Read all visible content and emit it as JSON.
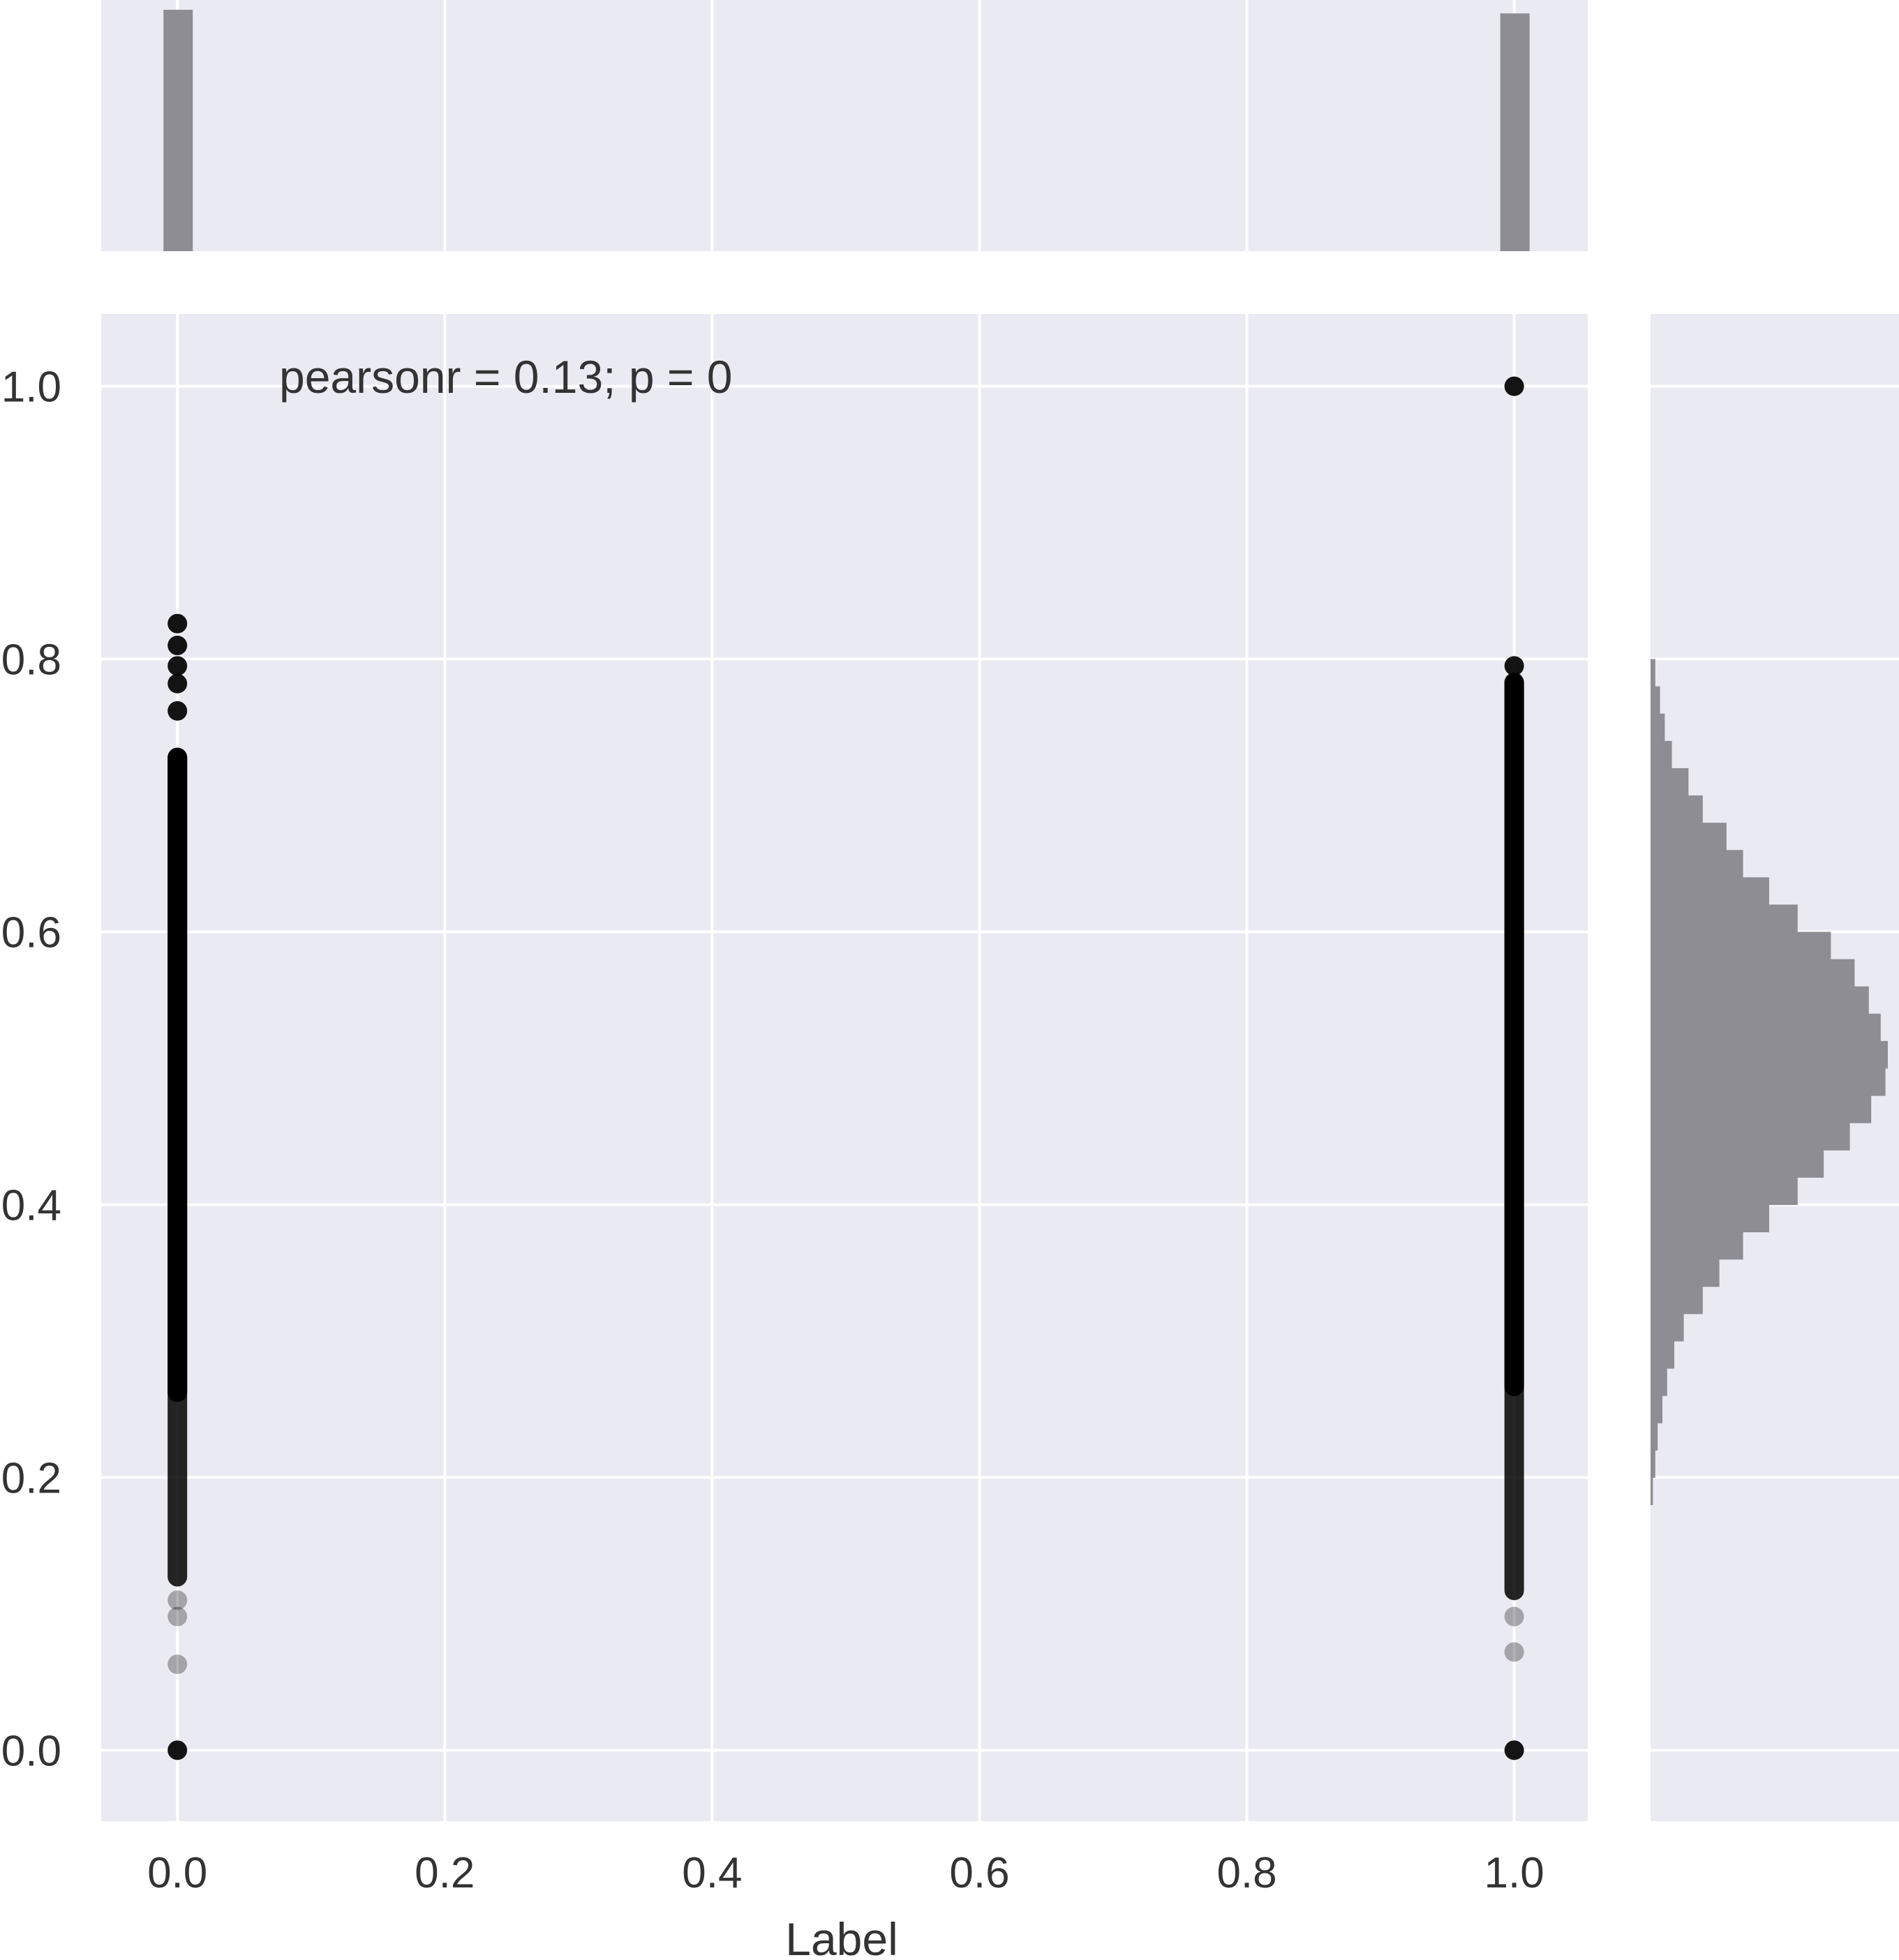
{
  "chart_data": {
    "type": "scatter",
    "title": "",
    "xlabel": "Label",
    "ylabel": "",
    "annotation": "pearsonr = 0.13; p = 0",
    "xlim": [
      -0.057,
      1.055
    ],
    "ylim": [
      -0.052,
      1.053
    ],
    "xticks": [
      0.0,
      0.2,
      0.4,
      0.6,
      0.8,
      1.0
    ],
    "xtick_labels": [
      "0.0",
      "0.2",
      "0.4",
      "0.6",
      "0.8",
      "1.0"
    ],
    "yticks": [
      0.0,
      0.2,
      0.4,
      0.6,
      0.8,
      1.0
    ],
    "ytick_labels": [
      "0.0",
      "0.2",
      "0.4",
      "0.6",
      "0.8",
      "1.0"
    ],
    "grid": true,
    "background_color": "#eaeaf2",
    "grid_color": "#ffffff",
    "point_color": "#000000",
    "bar_color": "#8e8d93",
    "text_color": "#333333",
    "scatter_points": [
      {
        "x": 0,
        "y": 0.0
      },
      {
        "x": 0,
        "y": 0.063
      },
      {
        "x": 0,
        "y": 0.098
      },
      {
        "x": 0,
        "y": 0.11
      },
      {
        "x": 0,
        "y": 0.762
      },
      {
        "x": 0,
        "y": 0.782
      },
      {
        "x": 0,
        "y": 0.795
      },
      {
        "x": 0,
        "y": 0.81
      },
      {
        "x": 0,
        "y": 0.826
      },
      {
        "x": 1,
        "y": 0.0
      },
      {
        "x": 1,
        "y": 0.072
      },
      {
        "x": 1,
        "y": 0.098
      },
      {
        "x": 1,
        "y": 0.795
      },
      {
        "x": 1,
        "y": 1.0
      }
    ],
    "dense_ranges": [
      {
        "x": 0,
        "y_min": 0.12,
        "y_max": 0.735
      },
      {
        "x": 1,
        "y_min": 0.11,
        "y_max": 0.79
      }
    ],
    "marginal_x": {
      "type": "histogram",
      "bars": [
        {
          "x": 0,
          "relative_height": 1.0
        },
        {
          "x": 1,
          "relative_height": 0.985
        }
      ]
    },
    "marginal_y": {
      "type": "histogram",
      "bin_edges": [
        0.18,
        0.2,
        0.22,
        0.24,
        0.26,
        0.28,
        0.3,
        0.32,
        0.34,
        0.36,
        0.38,
        0.4,
        0.42,
        0.44,
        0.46,
        0.48,
        0.5,
        0.52,
        0.54,
        0.56,
        0.58,
        0.6,
        0.62,
        0.64,
        0.66,
        0.68,
        0.7,
        0.72,
        0.74,
        0.76,
        0.78,
        0.8
      ],
      "relative_counts": [
        0.01,
        0.02,
        0.03,
        0.05,
        0.07,
        0.1,
        0.14,
        0.22,
        0.29,
        0.39,
        0.5,
        0.62,
        0.73,
        0.84,
        0.93,
        0.99,
        1.0,
        0.97,
        0.92,
        0.86,
        0.76,
        0.62,
        0.5,
        0.39,
        0.32,
        0.22,
        0.16,
        0.09,
        0.06,
        0.04,
        0.02
      ]
    }
  }
}
